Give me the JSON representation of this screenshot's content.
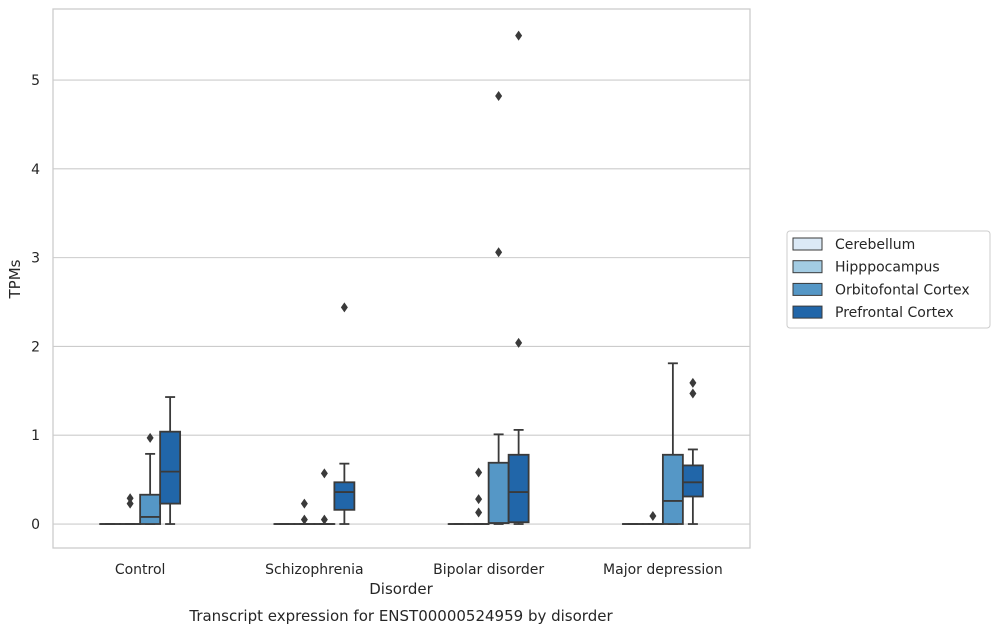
{
  "chart_data": {
    "type": "boxplot",
    "xlabel": "Disorder",
    "ylabel": "TPMs",
    "caption": "Transcript expression for ENST00000524959 by disorder",
    "categories": [
      "Control",
      "Schizophrenia",
      "Bipolar disorder",
      "Major depression"
    ],
    "ylim": [
      -0.27,
      5.8
    ],
    "yticks": [
      0,
      1,
      2,
      3,
      4,
      5
    ],
    "grid": "horizontal",
    "legend_position": "right",
    "series": [
      {
        "name": "Cerebellum",
        "color": "#dbe9f6",
        "boxes": [
          {
            "q1": 0,
            "median": 0,
            "q3": 0,
            "whisker_low": 0,
            "whisker_high": 0,
            "outliers": []
          },
          {
            "q1": 0,
            "median": 0,
            "q3": 0,
            "whisker_low": 0,
            "whisker_high": 0,
            "outliers": []
          },
          {
            "q1": 0,
            "median": 0,
            "q3": 0,
            "whisker_low": 0,
            "whisker_high": 0,
            "outliers": []
          },
          {
            "q1": 0,
            "median": 0,
            "q3": 0,
            "whisker_low": 0,
            "whisker_high": 0,
            "outliers": []
          }
        ]
      },
      {
        "name": "Hipppocampus",
        "color": "#a3cce3",
        "boxes": [
          {
            "q1": 0,
            "median": 0,
            "q3": 0,
            "whisker_low": 0,
            "whisker_high": 0,
            "outliers": [
              0.23,
              0.29
            ]
          },
          {
            "q1": 0,
            "median": 0,
            "q3": 0,
            "whisker_low": 0,
            "whisker_high": 0,
            "outliers": [
              0.05,
              0.23
            ]
          },
          {
            "q1": 0,
            "median": 0,
            "q3": 0,
            "whisker_low": 0,
            "whisker_high": 0,
            "outliers": [
              0.13,
              0.28,
              0.58
            ]
          },
          {
            "q1": 0,
            "median": 0,
            "q3": 0,
            "whisker_low": 0,
            "whisker_high": 0,
            "outliers": [
              0.09
            ]
          }
        ]
      },
      {
        "name": "Orbitofontal Cortex",
        "color": "#5597c6",
        "boxes": [
          {
            "q1": 0,
            "median": 0.08,
            "q3": 0.33,
            "whisker_low": 0,
            "whisker_high": 0.79,
            "outliers": [
              0.97
            ]
          },
          {
            "q1": 0,
            "median": 0,
            "q3": 0,
            "whisker_low": 0,
            "whisker_high": 0,
            "outliers": [
              0.05,
              0.57
            ]
          },
          {
            "q1": 0.01,
            "median": 0.01,
            "q3": 0.69,
            "whisker_low": 0,
            "whisker_high": 1.01,
            "outliers": [
              3.06,
              4.82
            ]
          },
          {
            "q1": 0,
            "median": 0.26,
            "q3": 0.78,
            "whisker_low": 0,
            "whisker_high": 1.81,
            "outliers": []
          }
        ]
      },
      {
        "name": "Prefrontal Cortex",
        "color": "#2166a9",
        "boxes": [
          {
            "q1": 0.23,
            "median": 0.59,
            "q3": 1.04,
            "whisker_low": 0,
            "whisker_high": 1.43,
            "outliers": []
          },
          {
            "q1": 0.16,
            "median": 0.36,
            "q3": 0.47,
            "whisker_low": 0,
            "whisker_high": 0.68,
            "outliers": [
              2.44
            ]
          },
          {
            "q1": 0.02,
            "median": 0.36,
            "q3": 0.78,
            "whisker_low": 0,
            "whisker_high": 1.06,
            "outliers": [
              2.04,
              5.5
            ]
          },
          {
            "q1": 0.31,
            "median": 0.47,
            "q3": 0.66,
            "whisker_low": 0,
            "whisker_high": 0.84,
            "outliers": [
              1.47,
              1.59
            ]
          }
        ]
      }
    ]
  }
}
